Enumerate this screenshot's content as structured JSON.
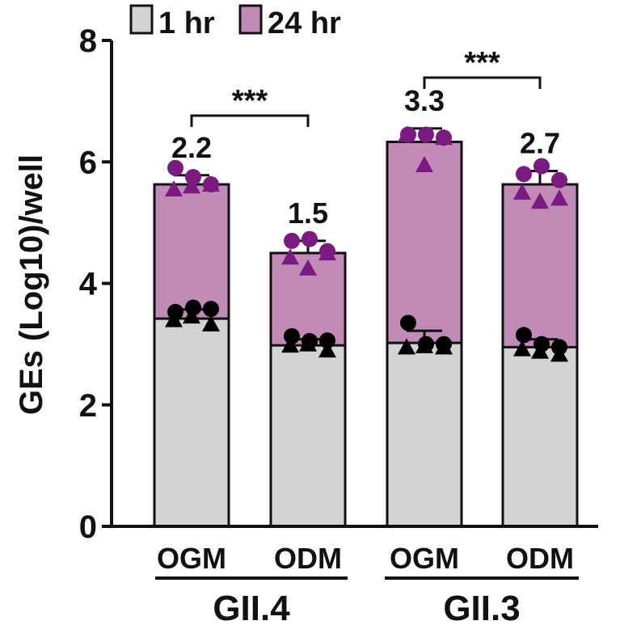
{
  "chart_data": {
    "type": "bar",
    "ylabel": "GEs (Log10)/well",
    "ylim": [
      0,
      8
    ],
    "yticks": [
      0,
      2,
      4,
      6,
      8
    ],
    "groups": [
      {
        "label": "GII.4",
        "categories": [
          "OGM",
          "ODM"
        ]
      },
      {
        "label": "GII.3",
        "categories": [
          "OGM",
          "ODM"
        ]
      }
    ],
    "categories": [
      "OGM",
      "ODM",
      "OGM",
      "ODM"
    ],
    "legend": [
      {
        "name": "1 hr",
        "color": "#d3d3d3"
      },
      {
        "name": "24 hr",
        "color": "#c18ab7"
      }
    ],
    "series": [
      {
        "name": "1 hr",
        "values": [
          3.42,
          2.98,
          3.02,
          2.95
        ],
        "error": [
          0.15,
          0.1,
          0.2,
          0.13
        ]
      },
      {
        "name": "24 hr",
        "values": [
          5.63,
          4.5,
          6.33,
          5.63
        ],
        "error": [
          0.15,
          0.2,
          0.22,
          0.22
        ]
      }
    ],
    "fold_labels": [
      "2.2",
      "1.5",
      "3.3",
      "2.7"
    ],
    "points": {
      "1 hr": [
        {
          "circle": [
            3.53,
            3.6,
            3.58
          ],
          "triangle": [
            3.4,
            3.46,
            3.33
          ]
        },
        {
          "circle": [
            3.13,
            3.05,
            3.06
          ],
          "triangle": [
            2.98,
            3.0,
            2.9
          ]
        },
        {
          "circle": [
            3.35,
            3.0,
            3.0
          ],
          "triangle": [
            2.95,
            2.97,
            2.95
          ]
        },
        {
          "circle": [
            3.15,
            3.0,
            2.95
          ],
          "triangle": [
            2.92,
            2.88,
            2.83
          ]
        }
      ],
      "24 hr": [
        {
          "circle": [
            5.9,
            5.75,
            5.63
          ],
          "triangle": [
            5.55,
            5.6,
            5.63
          ]
        },
        {
          "circle": [
            4.7,
            4.73,
            4.53
          ],
          "triangle": [
            4.43,
            4.25,
            4.5
          ]
        },
        {
          "circle": [
            6.45,
            6.45,
            6.4
          ],
          "triangle": [
            6.45,
            5.95,
            6.4
          ]
        },
        {
          "circle": [
            5.8,
            5.93,
            5.7
          ],
          "triangle": [
            5.5,
            5.35,
            5.4
          ]
        }
      ]
    },
    "significance": [
      {
        "from": 0,
        "to": 1,
        "label": "***"
      },
      {
        "from": 2,
        "to": 3,
        "label": "***"
      }
    ],
    "colors": {
      "bar_1hr": "#d3d3d3",
      "bar_24hr": "#c18ab7",
      "point_1hr": "#000000",
      "point_24hr": "#7b1a80"
    }
  }
}
